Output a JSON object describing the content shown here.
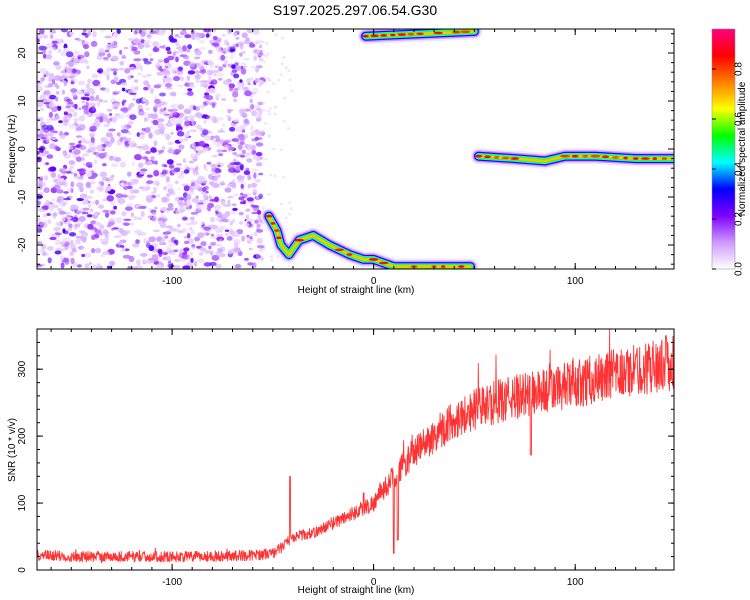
{
  "title": "S197.2025.297.06.54.G30",
  "chart_data": [
    {
      "type": "heatmap",
      "xlabel": "Height of straight line (km)",
      "ylabel": "Frequency (Hz)",
      "xlim": [
        -167,
        149
      ],
      "ylim": [
        -25,
        25
      ],
      "xticks": [
        -100,
        0,
        100
      ],
      "yticks": [
        -20,
        -10,
        0,
        10,
        20
      ],
      "colorbar": {
        "label": "Normalized spectral amplitude",
        "range": [
          0,
          0.96
        ],
        "ticks": [
          0.0,
          0.2,
          0.4,
          0.6,
          0.8
        ],
        "tick_labels": [
          "0.0",
          "0.2",
          "0.4",
          "0.6",
          "0.8"
        ],
        "colors": [
          "#ffffff",
          "#cc99ff",
          "#7f00ff",
          "#0000ff",
          "#00ffff",
          "#00ff00",
          "#ffff00",
          "#ff7f00",
          "#ff0000",
          "#ff0080"
        ]
      },
      "features": [
        {
          "name": "noise-region",
          "x_range": [
            -167,
            -55
          ],
          "y_range": [
            -25,
            25
          ],
          "amplitude": 0.15
        },
        {
          "name": "ridge-lower",
          "points": [
            [
              -52,
              -14
            ],
            [
              -48,
              -17
            ],
            [
              -46,
              -20
            ],
            [
              -42,
              -22
            ],
            [
              -37,
              -19
            ],
            [
              -30,
              -18
            ],
            [
              -22,
              -20
            ],
            [
              -12,
              -22
            ],
            [
              -5,
              -23
            ],
            [
              0,
              -23
            ],
            [
              10,
              -24.5
            ],
            [
              30,
              -24.5
            ],
            [
              48,
              -24.5
            ]
          ]
        },
        {
          "name": "ridge-upper",
          "points": [
            [
              52,
              -1.5
            ],
            [
              70,
              -2
            ],
            [
              85,
              -2.5
            ],
            [
              95,
              -1.5
            ],
            [
              110,
              -1.5
            ],
            [
              130,
              -2
            ],
            [
              149,
              -2
            ]
          ]
        },
        {
          "name": "ridge-top",
          "points": [
            [
              -4,
              23.5
            ],
            [
              50,
              24.5
            ]
          ]
        }
      ]
    },
    {
      "type": "line",
      "xlabel": "Height of straight line (km)",
      "ylabel": "SNR (10 * v/v)",
      "xlim": [
        -167,
        149
      ],
      "ylim": [
        0,
        360
      ],
      "xticks": [
        -100,
        0,
        100
      ],
      "yticks": [
        0,
        100,
        200,
        300
      ],
      "color": "#ff3333",
      "series": [
        {
          "name": "SNR",
          "trend": {
            "x": [
              -167,
              -150,
              -120,
              -90,
              -60,
              -50,
              -45,
              -40,
              -30,
              -20,
              -10,
              0,
              10,
              20,
              30,
              40,
              50,
              60,
              70,
              80,
              90,
              100,
              110,
              120,
              130,
              140,
              149
            ],
            "y": [
              22,
              20,
              20,
              20,
              22,
              25,
              35,
              50,
              55,
              70,
              85,
              100,
              140,
              175,
              200,
              225,
              240,
              250,
              258,
              265,
              270,
              278,
              285,
              292,
              298,
              305,
              308
            ]
          },
          "spikes": [
            {
              "x": -41.5,
              "y": 140
            },
            {
              "x": -5,
              "y": 115
            },
            {
              "x": 10,
              "y": 25
            },
            {
              "x": 12,
              "y": 45
            },
            {
              "x": 18,
              "y": 160
            },
            {
              "x": 78,
              "y": 172
            },
            {
              "x": 145,
              "y": 350
            }
          ]
        }
      ]
    }
  ]
}
